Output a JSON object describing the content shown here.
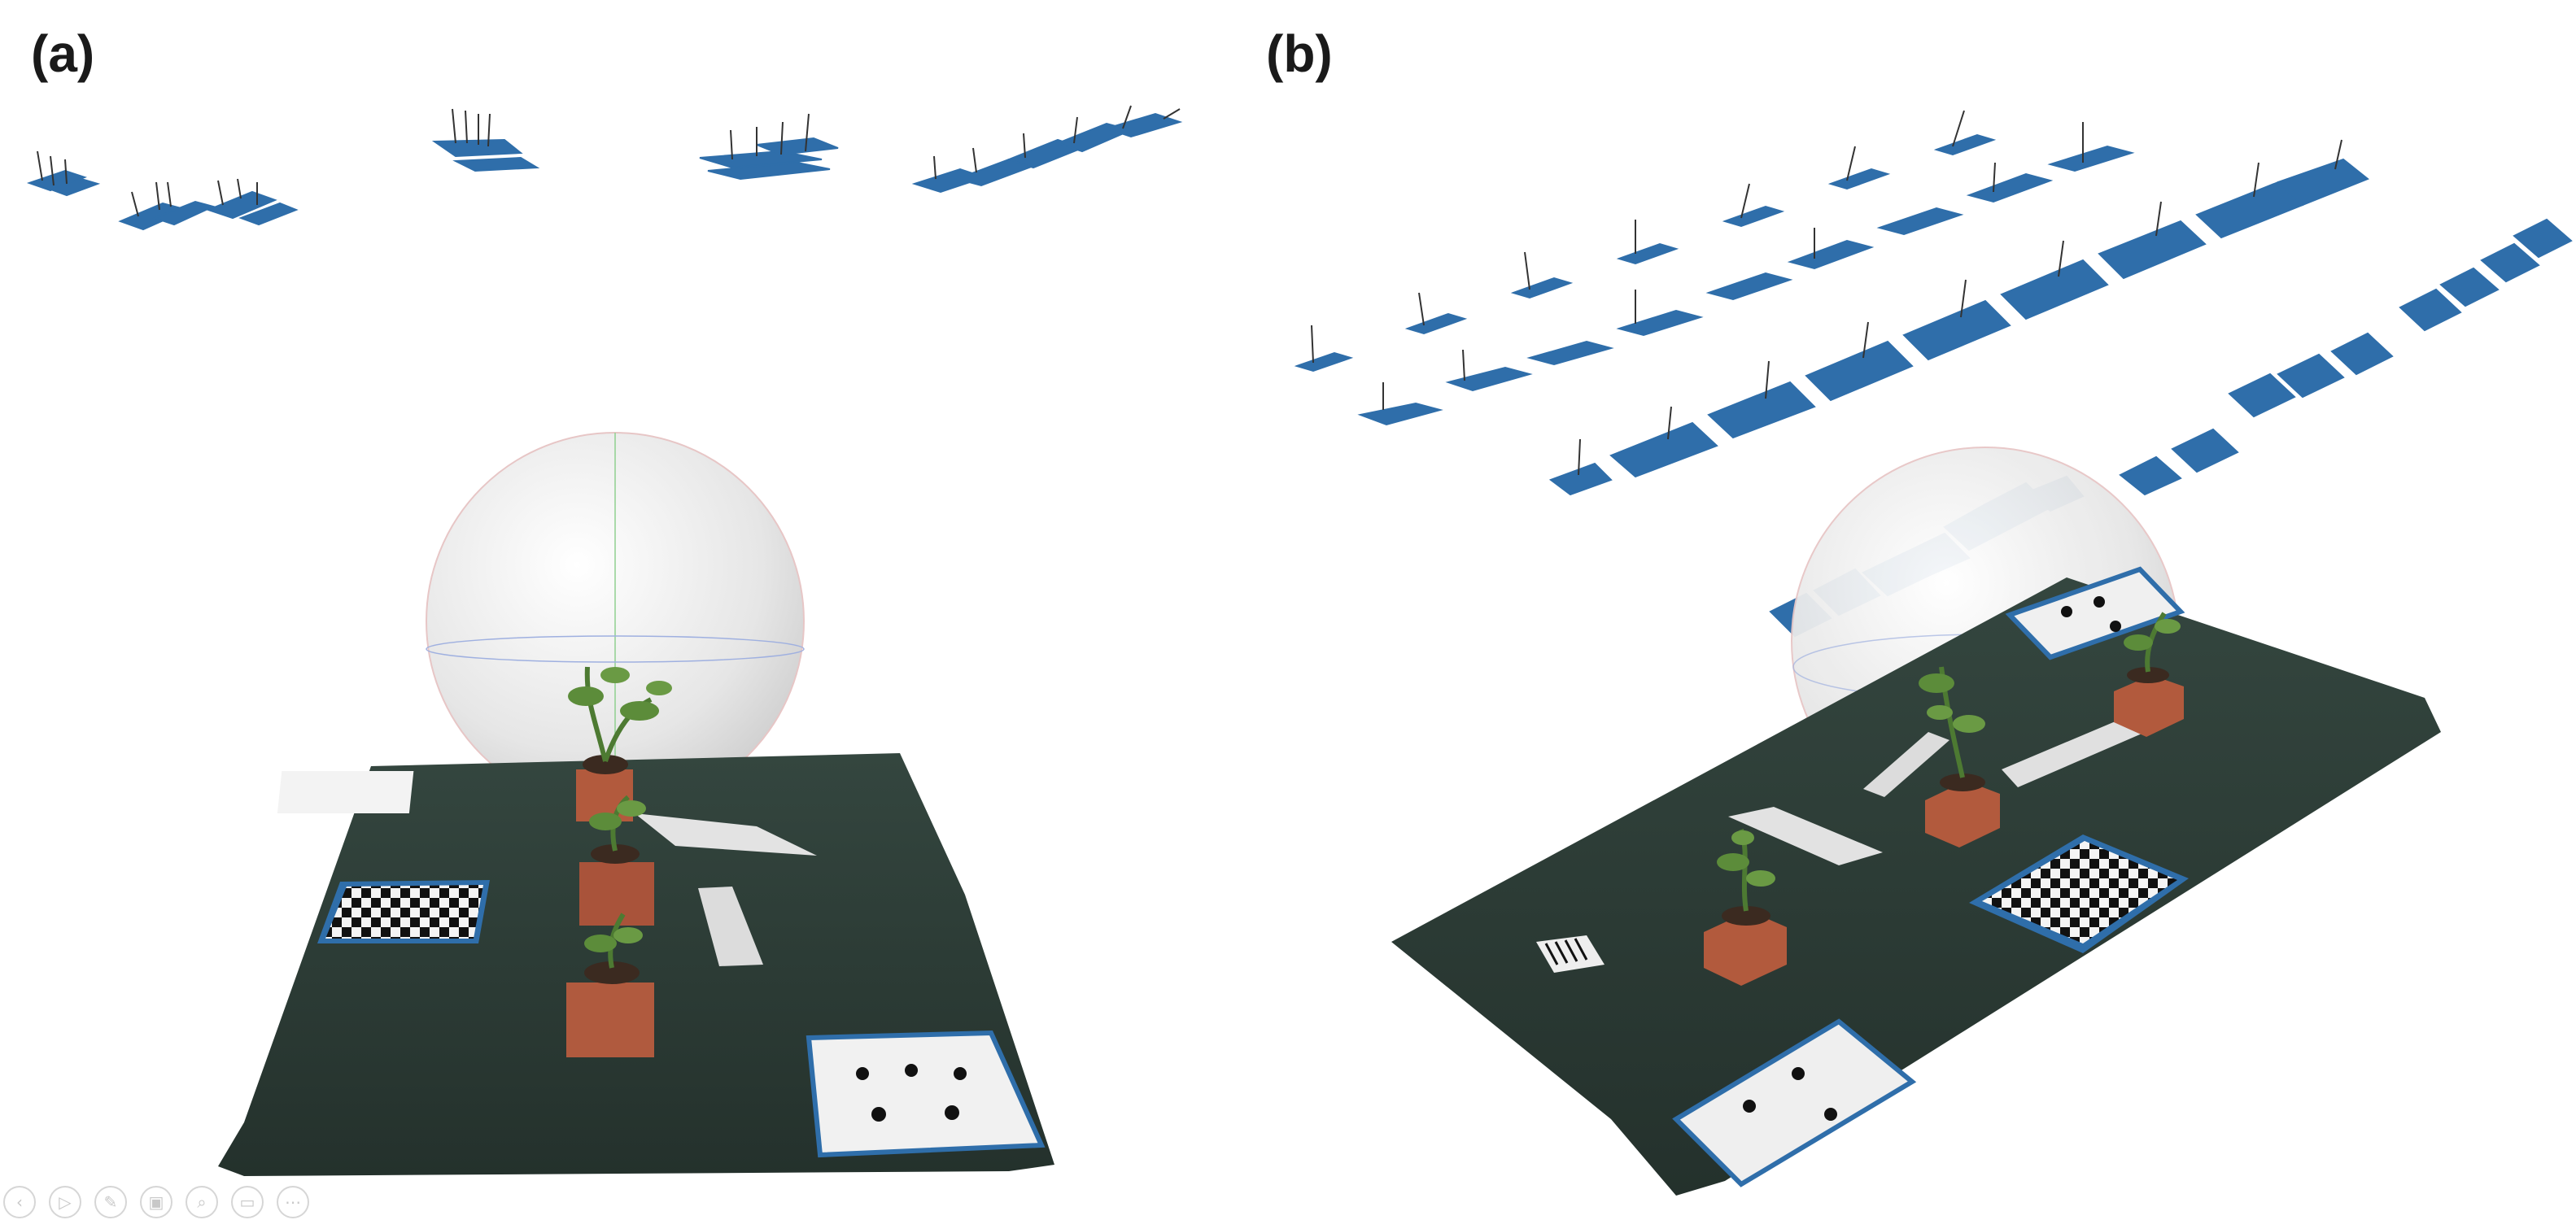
{
  "panels": {
    "a": {
      "label": "(a)"
    },
    "b": {
      "label": "(b)"
    }
  },
  "colors": {
    "camera_frustum": "#2f6eaa",
    "ground_mat": "#2c3b36",
    "sphere": "#e9e9e9",
    "brick": "#b25a3d",
    "plant": "#4d7a32"
  },
  "toolbar": {
    "icons": [
      "previous-icon",
      "play-icon",
      "pen-icon",
      "slides-icon",
      "zoom-icon",
      "subtitles-icon",
      "more-icon"
    ]
  }
}
